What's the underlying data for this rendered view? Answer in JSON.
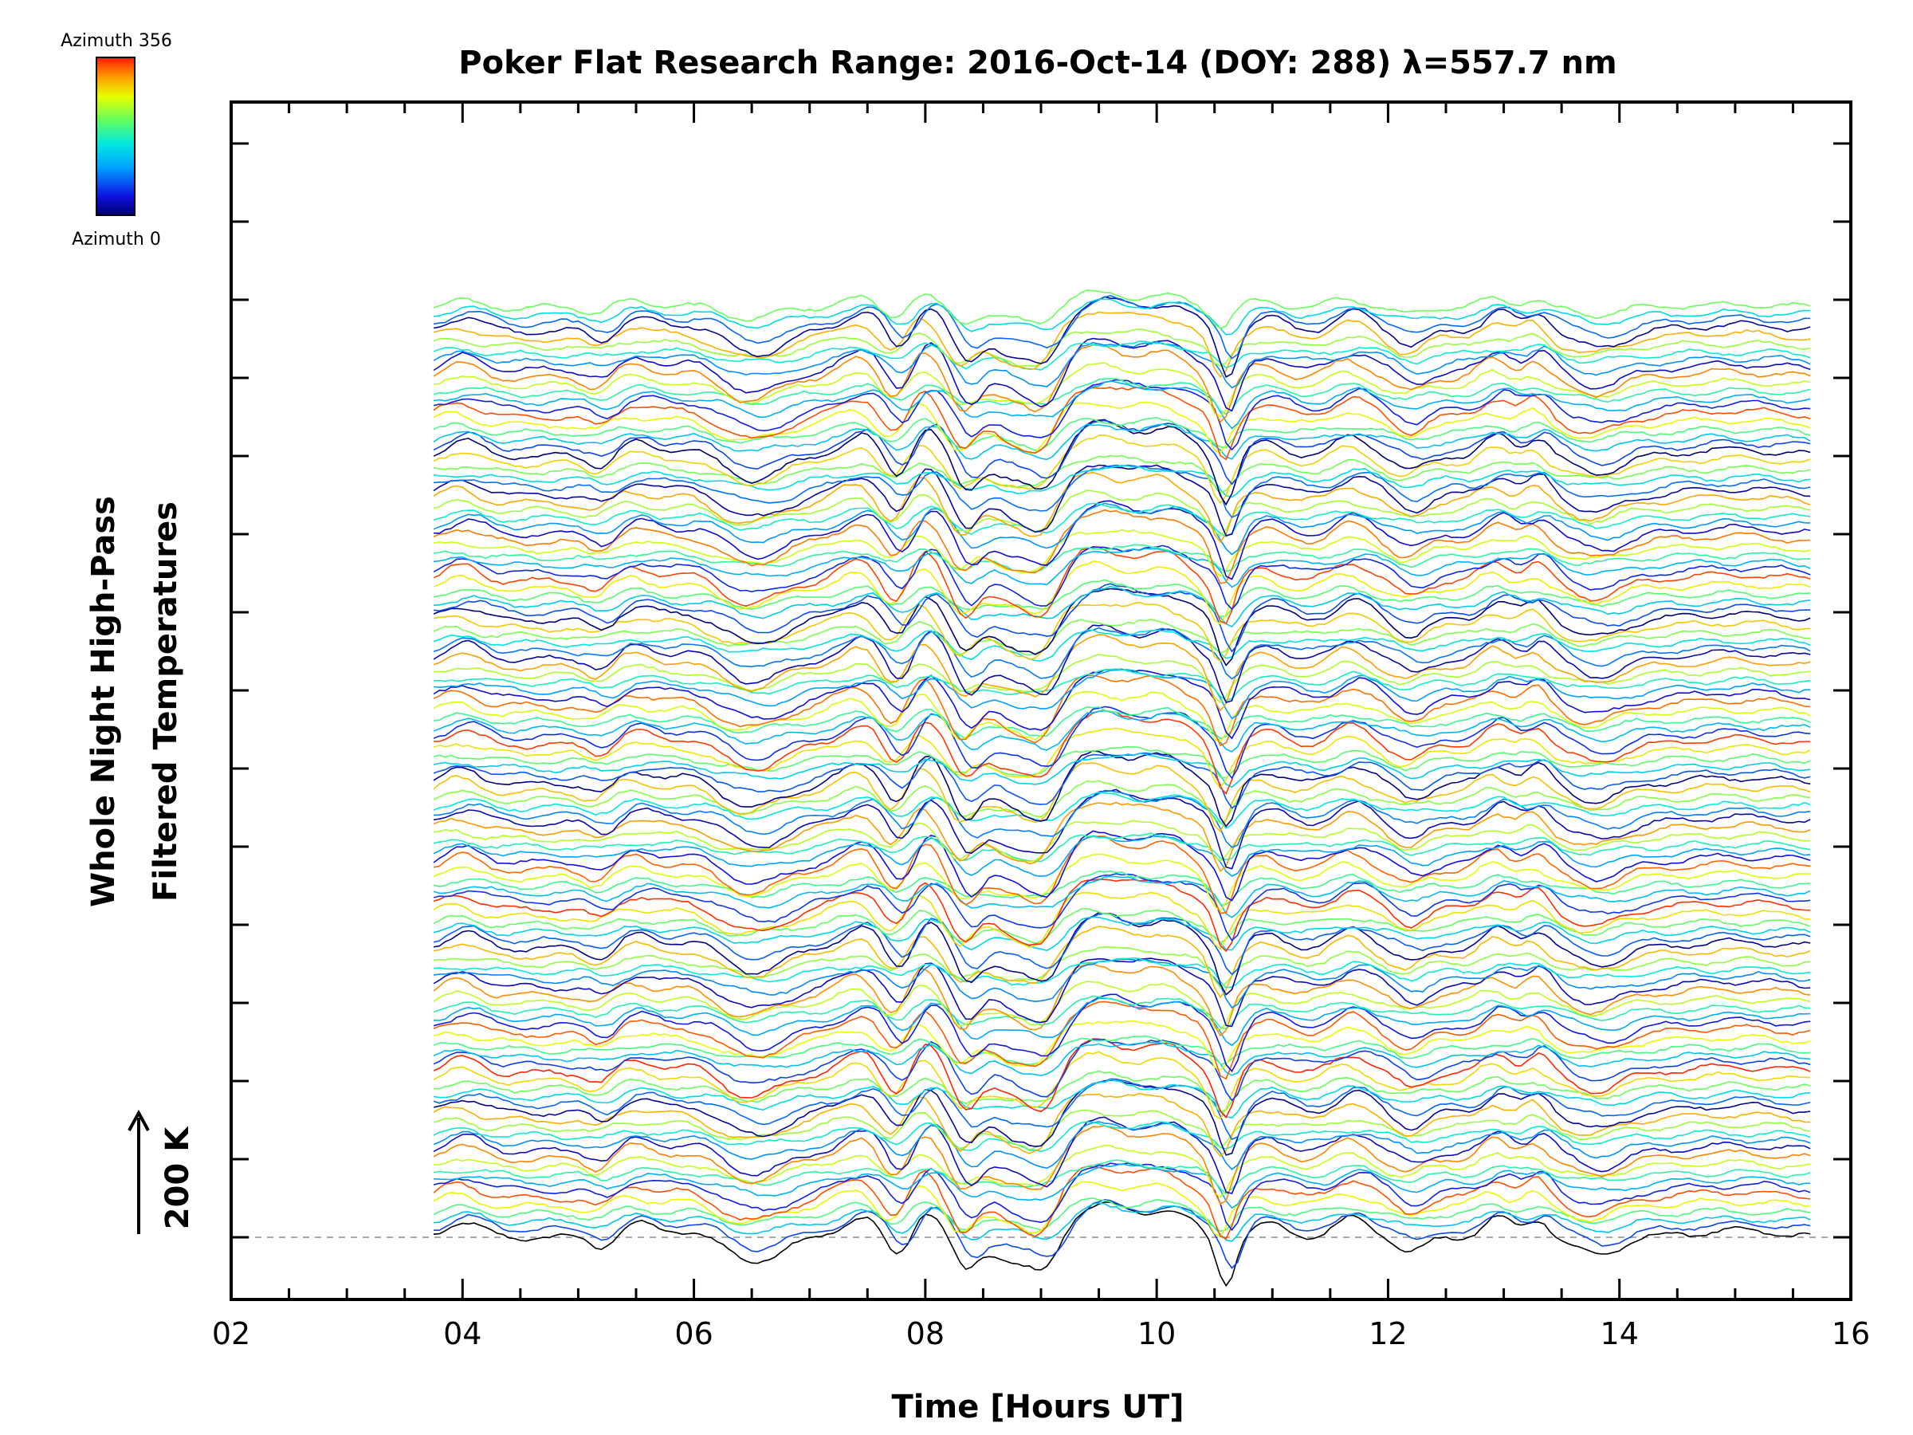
{
  "chart_data": {
    "type": "line",
    "title": "Poker Flat Research Range: 2016-Oct-14 (DOY: 288) λ=557.7 nm",
    "xlabel": "Time [Hours UT]",
    "ylabel_lines": [
      "Whole Night High-Pass",
      "Filtered Temperatures"
    ],
    "scale_label": "200 K",
    "xlim": [
      2,
      16
    ],
    "x_tick_labels": [
      "02",
      "04",
      "06",
      "08",
      "10",
      "12",
      "14",
      "16"
    ],
    "data_start_hour": 3.75,
    "data_end_hour": 15.65,
    "colorbar": {
      "top_label": "Azimuth 356",
      "bottom_label": "Azimuth 0",
      "colormap": "rainbow",
      "min": 0,
      "max": 356
    },
    "baseline_style": "dashed",
    "series_count": 120,
    "offset_k_per_series": 20,
    "y_tick_spacing_k": 200,
    "features": [
      {
        "hour": 4.0,
        "amp": 35,
        "width": 0.15
      },
      {
        "hour": 5.2,
        "amp": -25,
        "width": 0.1
      },
      {
        "hour": 5.5,
        "amp": 30,
        "width": 0.15
      },
      {
        "hour": 6.0,
        "amp": 20,
        "width": 0.2
      },
      {
        "hour": 6.5,
        "amp": -55,
        "width": 0.25
      },
      {
        "hour": 7.5,
        "amp": 50,
        "width": 0.2
      },
      {
        "hour": 7.75,
        "amp": -70,
        "width": 0.12
      },
      {
        "hour": 8.0,
        "amp": 65,
        "width": 0.12
      },
      {
        "hour": 8.35,
        "amp": -75,
        "width": 0.1
      },
      {
        "hour": 8.8,
        "amp": -60,
        "width": 0.2
      },
      {
        "hour": 9.05,
        "amp": -65,
        "width": 0.12
      },
      {
        "hour": 9.5,
        "amp": 75,
        "width": 0.28
      },
      {
        "hour": 10.1,
        "amp": 55,
        "width": 0.2
      },
      {
        "hour": 10.6,
        "amp": -110,
        "width": 0.08
      },
      {
        "hour": 10.95,
        "amp": 30,
        "width": 0.15
      },
      {
        "hour": 11.7,
        "amp": 45,
        "width": 0.15
      },
      {
        "hour": 12.2,
        "amp": -35,
        "width": 0.12
      },
      {
        "hour": 12.95,
        "amp": 45,
        "width": 0.12
      },
      {
        "hour": 13.3,
        "amp": 45,
        "width": 0.1
      },
      {
        "hour": 13.8,
        "amp": -40,
        "width": 0.2
      },
      {
        "hour": 15.0,
        "amp": 15,
        "width": 0.4
      }
    ]
  }
}
